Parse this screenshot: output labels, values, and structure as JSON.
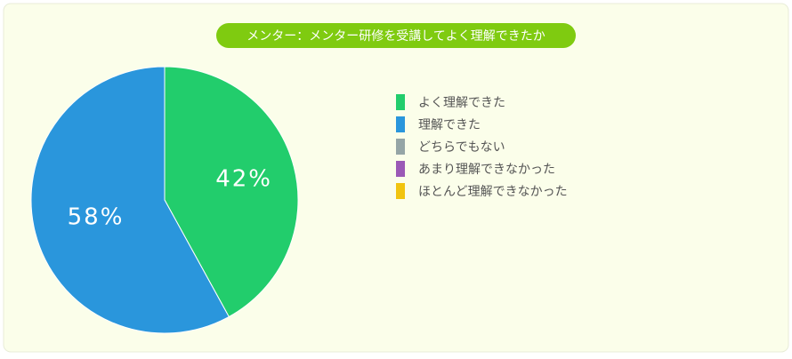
{
  "chart_data": {
    "type": "pie",
    "title": "メンター：メンター研修を受講してよく理解できたか",
    "categories": [
      "よく理解できた",
      "理解できた",
      "どちらでもない",
      "あまり理解できなかった",
      "ほとんど理解できなかった"
    ],
    "values": [
      42,
      58,
      0,
      0,
      0
    ],
    "value_labels": [
      "42%",
      "58%",
      null,
      null,
      null
    ],
    "colors": [
      "#22cd6c",
      "#2a96dc",
      "#95a5a6",
      "#9b59b6",
      "#f1c40f"
    ],
    "legend": "right"
  }
}
